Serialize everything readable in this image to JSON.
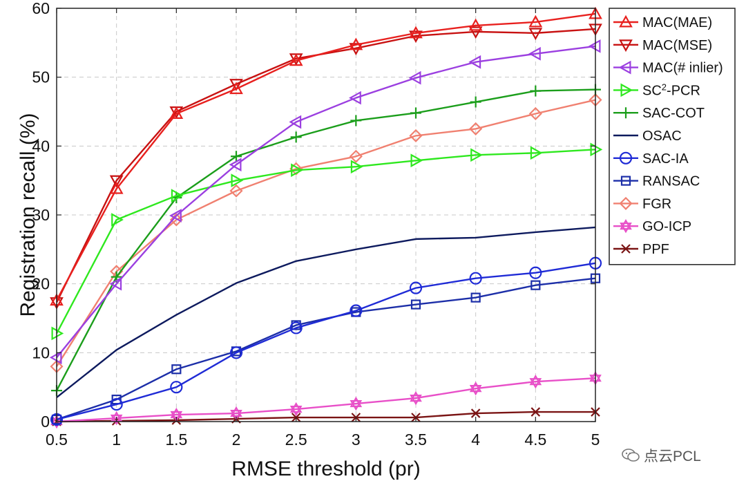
{
  "chart_data": {
    "type": "line",
    "xlabel": "RMSE threshold (pr)",
    "ylabel": "Registration recall (%)",
    "xlim": [
      0.5,
      5
    ],
    "ylim": [
      0,
      60
    ],
    "grid": true,
    "x": [
      0.5,
      1,
      1.5,
      2,
      2.5,
      3,
      3.5,
      4,
      4.5,
      5
    ],
    "x_ticks": [
      "0.5",
      "1",
      "1.5",
      "2",
      "2.5",
      "3",
      "3.5",
      "4",
      "4.5",
      "5"
    ],
    "y_ticks": [
      "0",
      "10",
      "20",
      "30",
      "40",
      "50",
      "60"
    ],
    "legend_position": "right",
    "series": [
      {
        "name": "MAC(MAE)",
        "label": "MAC(MAE)",
        "color": "#e8201e",
        "marker": "triangle-up",
        "values": [
          17.6,
          33.8,
          44.7,
          48.3,
          52.4,
          54.7,
          56.4,
          57.5,
          58.0,
          59.2
        ]
      },
      {
        "name": "MAC(MSE)",
        "label": "MAC(MSE)",
        "color": "#c81212",
        "marker": "triangle-down",
        "values": [
          17.3,
          35.0,
          45.0,
          49.0,
          52.7,
          54.2,
          56.0,
          56.6,
          56.4,
          57.0
        ]
      },
      {
        "name": "MAC(# inlier)",
        "label": "MAC(# inlier)",
        "color": "#9b3fe0",
        "marker": "triangle-left",
        "values": [
          9.3,
          20.0,
          29.9,
          37.3,
          43.5,
          47.0,
          49.9,
          52.2,
          53.4,
          54.5
        ]
      },
      {
        "name": "SC2-PCR",
        "label_main": "SC",
        "label_sup": "2",
        "label_rest": "-PCR",
        "color": "#2ee81e",
        "marker": "triangle-right",
        "values": [
          12.8,
          29.3,
          32.8,
          35.0,
          36.5,
          37.0,
          37.9,
          38.7,
          39.0,
          39.5
        ]
      },
      {
        "name": "SAC-COT",
        "label": "SAC-COT",
        "color": "#1b9e1b",
        "marker": "plus",
        "values": [
          4.5,
          21.0,
          32.5,
          38.5,
          41.3,
          43.7,
          44.8,
          46.4,
          48.0,
          48.2
        ]
      },
      {
        "name": "OSAC",
        "label": "OSAC",
        "color": "#0d1a5e",
        "marker": "none",
        "values": [
          3.5,
          10.4,
          15.5,
          20.1,
          23.3,
          25.0,
          26.5,
          26.7,
          27.5,
          28.2
        ]
      },
      {
        "name": "SAC-IA",
        "label": "SAC-IA",
        "color": "#1f2bd6",
        "marker": "circle",
        "values": [
          0.3,
          2.5,
          5.0,
          10.0,
          13.6,
          16.1,
          19.4,
          20.8,
          21.6,
          23.0
        ]
      },
      {
        "name": "RANSAC",
        "label": "RANSAC",
        "color": "#1c2ea8",
        "marker": "square",
        "values": [
          0.3,
          3.2,
          7.6,
          10.2,
          14.0,
          15.9,
          17.0,
          18.0,
          19.8,
          20.8
        ]
      },
      {
        "name": "FGR",
        "label": "FGR",
        "color": "#f08070",
        "marker": "diamond",
        "values": [
          8.0,
          21.8,
          29.3,
          33.5,
          36.7,
          38.5,
          41.5,
          42.5,
          44.7,
          46.7
        ]
      },
      {
        "name": "GO-ICP",
        "label": "GO-ICP",
        "color": "#e84fc8",
        "marker": "hexagram",
        "values": [
          0.0,
          0.5,
          1.0,
          1.2,
          1.8,
          2.6,
          3.4,
          4.8,
          5.8,
          6.3
        ]
      },
      {
        "name": "PPF",
        "label": "PPF",
        "color": "#7a1414",
        "marker": "x",
        "values": [
          0.0,
          0.1,
          0.2,
          0.4,
          0.6,
          0.6,
          0.6,
          1.2,
          1.4,
          1.4
        ]
      }
    ]
  },
  "watermark": {
    "text": "点云PCL",
    "icon": "wechat-icon"
  }
}
